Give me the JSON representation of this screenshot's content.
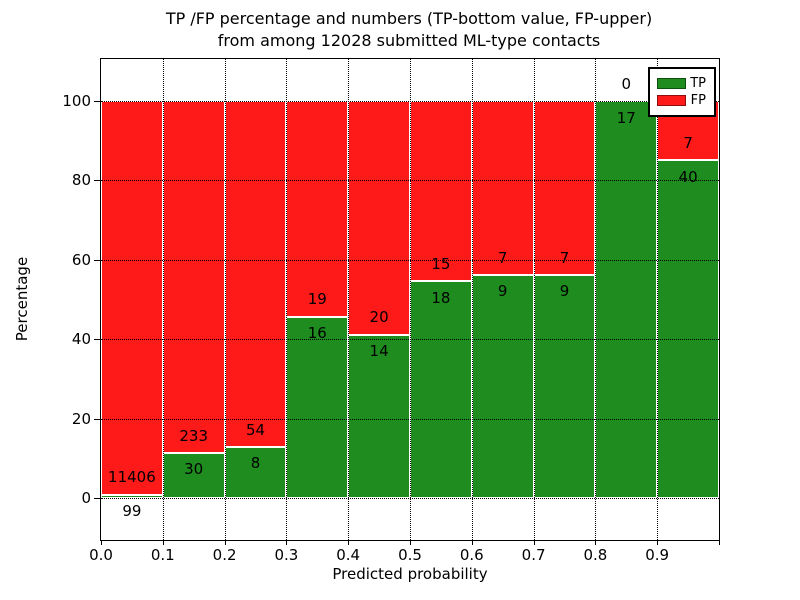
{
  "title": {
    "line1": "TP /FP percentage and numbers (TP-bottom value, FP-upper)",
    "line2": "from among 12028 submitted ML-type contacts"
  },
  "chart_data": {
    "type": "bar",
    "stacked": true,
    "normalized": "each bar scaled to 100%, labels show raw counts (TP bottom, FP upper)",
    "bin_starts": [
      0.0,
      0.1,
      0.2,
      0.3,
      0.4,
      0.5,
      0.6,
      0.7,
      0.8,
      0.9
    ],
    "bin_width": 0.1,
    "series": [
      {
        "name": "TP",
        "color": "#1e8c1e",
        "counts": [
          99,
          30,
          8,
          16,
          14,
          18,
          9,
          9,
          17,
          40
        ]
      },
      {
        "name": "FP",
        "color": "#ff1a1a",
        "counts": [
          11406,
          233,
          54,
          19,
          20,
          15,
          7,
          7,
          0,
          7
        ]
      }
    ],
    "xlabel": "Predicted probability",
    "ylabel": "Percentage",
    "x_tick_labels": [
      "0.0",
      "0.1",
      "0.2",
      "0.3",
      "0.4",
      "0.5",
      "0.6",
      "0.7",
      "0.8",
      "0.9"
    ],
    "y_tick_values": [
      0,
      20,
      40,
      60,
      80,
      100
    ],
    "y_tick_labels": [
      "0",
      "20",
      "40",
      "60",
      "80",
      "100"
    ],
    "xlim": [
      0.0,
      1.0
    ],
    "ylim": [
      -10.6,
      110.6
    ],
    "grid": "dotted",
    "legend": {
      "position": "upper-right",
      "entries": [
        {
          "label": "TP",
          "color": "#1e8c1e"
        },
        {
          "label": "FP",
          "color": "#ff1a1a"
        }
      ]
    }
  },
  "colors": {
    "tp": "#1e8c1e",
    "fp": "#ff1a1a",
    "background": "#ffffff",
    "text": "#000000"
  }
}
